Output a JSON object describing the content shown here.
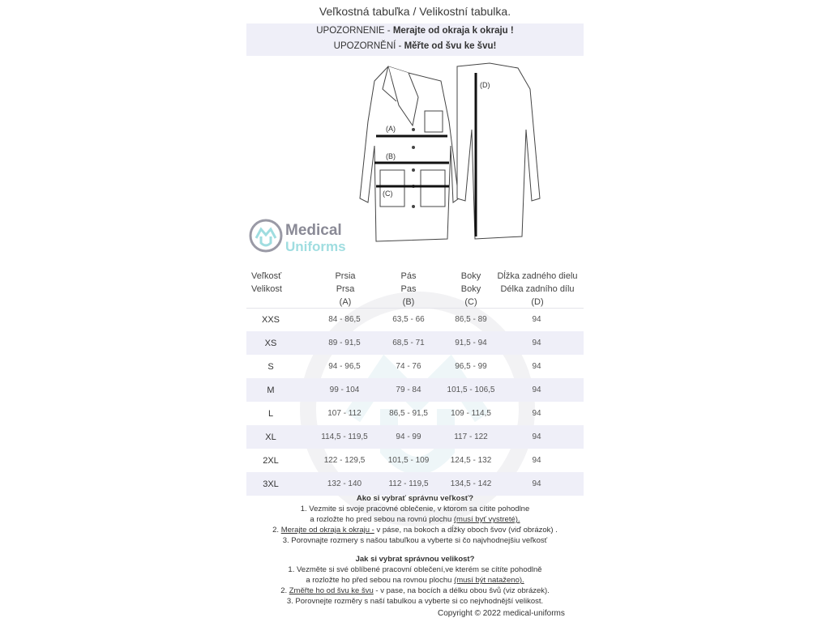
{
  "title": "Veľkostná tabuľka / Velikostní tabulka.",
  "warning": {
    "sk_prefix": "UPOZORNENIE  - ",
    "sk_bold": "Merajte od okraja k okraju !",
    "cz_prefix": "UPOZORNĚNÍ  - ",
    "cz_bold": "Měřte od švu ke švu!"
  },
  "drawing": {
    "label_a": "(A)",
    "label_b": "(B)",
    "label_c": "(C)",
    "label_d": "(D)"
  },
  "logo": {
    "line1": "Medical",
    "line2": "Uniforms",
    "colors": {
      "ring": "#9a9aa6",
      "text1": "#8a8a96",
      "text2": "#9fdde0"
    }
  },
  "table": {
    "headers": [
      [
        "Veľkosť",
        "Velikost"
      ],
      [
        "Prsia",
        "Prsa",
        "(A)"
      ],
      [
        "Pás",
        "Pas",
        "(B)"
      ],
      [
        "Boky",
        "Boky",
        "(C)"
      ],
      [
        "Dĺžka zadného dielu",
        "Délka zadního dílu",
        "(D)"
      ]
    ],
    "rows": [
      [
        "XXS",
        "84 - 86,5",
        "63,5 - 66",
        "86,5 - 89",
        "94"
      ],
      [
        "XS",
        "89 - 91,5",
        "68,5 - 71",
        "91,5 - 94",
        "94"
      ],
      [
        "S",
        "94 - 96,5",
        "74 - 76",
        "96,5 - 99",
        "94"
      ],
      [
        "M",
        "99 - 104",
        "79 - 84",
        "101,5 - 106,5",
        "94"
      ],
      [
        "L",
        "107 - 112",
        "86,5 - 91,5",
        "109 - 114,5",
        "94"
      ],
      [
        "XL",
        "114,5 - 119,5",
        "94 - 99",
        "117 - 122",
        "94"
      ],
      [
        "2XL",
        "122 - 129,5",
        "101,5 - 109",
        "124,5 - 132",
        "94"
      ],
      [
        "3XL",
        "132 - 140",
        "112 - 119,5",
        "134,5 - 142",
        "94"
      ]
    ]
  },
  "howto_sk": {
    "title": "Ako si vybrať správnu veľkosť?",
    "l1": "1. Vezmite si svoje pracovné oblečenie, v ktorom sa cítite pohodlne",
    "l2a": "a rozložte ho pred sebou na rovnú plochu ",
    "l2u": "(musí byť vystreté).",
    "l3n": "2. ",
    "l3u": "Merajte od okraja k okraju -",
    "l3b": " v páse, na bokoch a dĺžky oboch švov (viď obrázok) .",
    "l4": "3. Porovnajte rozmery s našou tabuľkou a vyberte si čo najvhodnejšiu veľkosť"
  },
  "howto_cz": {
    "title": "Jak si vybrat správnou velikost?",
    "l1": "1. Vezměte si své oblíbené pracovní oblečení,ve kterém se cítíte pohodlně",
    "l2a": "a rozložte ho před sebou na rovnou plochu ",
    "l2u": "(musí být nataženo).",
    "l3n": "2. ",
    "l3u": "Změřte ho od švu ke švu",
    "l3b": " - v pase, na bocích a délku obou švů (viz obrázek).",
    "l4": "3. Porovnejte rozměry s naší tabulkou a vyberte si co nejvhodnější velikost."
  },
  "copyright": "Copyright © 2022 medical-uniforms"
}
